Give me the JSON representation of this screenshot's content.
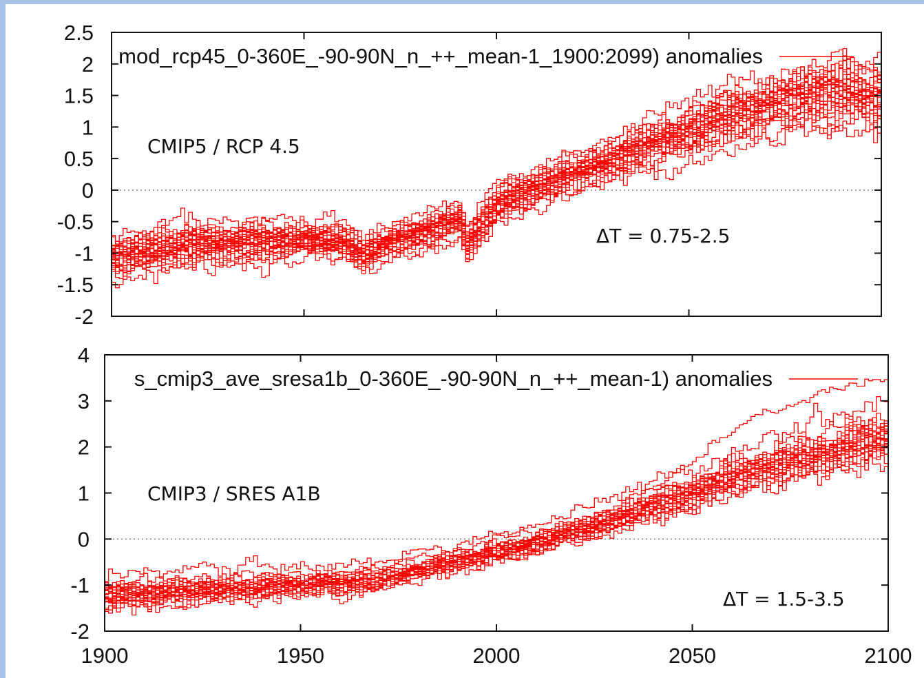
{
  "chart_data": [
    {
      "type": "line",
      "title": "",
      "legend_label": "mod_rcp45_0-360E_-90-90N_n_++_mean-1_1900:2099) anomalies",
      "legend_position": "top-right",
      "annotation_scenario": "CMIP5 / RCP 4.5",
      "annotation_range": "ΔT = 0.75-2.5",
      "xlim": [
        1900,
        2100
      ],
      "ylim": [
        -2,
        2.5
      ],
      "yticks": [
        "2.5",
        "2",
        "1.5",
        "1",
        "0.5",
        "0",
        "-0.5",
        "-1",
        "-1.5",
        "-2"
      ],
      "xticks": [
        "1900",
        "1950",
        "2000",
        "2050",
        "2100"
      ],
      "show_xtick_labels": false,
      "zero_line": true,
      "series_color": "#ff0000",
      "series_count": 30,
      "ensemble_envelope": {
        "x": [
          1900,
          1920,
          1940,
          1960,
          1965,
          1970,
          1980,
          1990,
          1992,
          2000,
          2010,
          2020,
          2030,
          2040,
          2050,
          2060,
          2070,
          2080,
          2090,
          2100
        ],
        "mean": [
          -1.05,
          -0.85,
          -0.8,
          -0.8,
          -1.05,
          -0.85,
          -0.65,
          -0.45,
          -0.85,
          -0.2,
          0.05,
          0.3,
          0.5,
          0.75,
          0.95,
          1.15,
          1.35,
          1.5,
          1.55,
          1.5
        ],
        "spread": [
          0.3,
          0.28,
          0.25,
          0.22,
          0.25,
          0.22,
          0.22,
          0.22,
          0.25,
          0.25,
          0.25,
          0.25,
          0.27,
          0.3,
          0.33,
          0.36,
          0.38,
          0.42,
          0.45,
          0.47
        ]
      }
    },
    {
      "type": "line",
      "title": "",
      "legend_label": "s_cmip3_ave_sresa1b_0-360E_-90-90N_n_++_mean-1) anomalies",
      "legend_position": "top-right",
      "annotation_scenario": "CMIP3 / SRES A1B",
      "annotation_range": "ΔT = 1.5-3.5",
      "xlim": [
        1900,
        2100
      ],
      "ylim": [
        -2,
        4
      ],
      "yticks": [
        "4",
        "3",
        "2",
        "1",
        "0",
        "-1",
        "-2"
      ],
      "xticks": [
        "1900",
        "1950",
        "2000",
        "2050",
        "2100"
      ],
      "show_xtick_labels": true,
      "zero_line": true,
      "series_color": "#ff0000",
      "series_count": 24,
      "ensemble_envelope": {
        "x": [
          1900,
          1920,
          1940,
          1960,
          1970,
          1980,
          1990,
          2000,
          2010,
          2020,
          2030,
          2040,
          2050,
          2060,
          2070,
          2080,
          2090,
          2100
        ],
        "mean": [
          -1.2,
          -1.1,
          -1.0,
          -0.95,
          -0.85,
          -0.65,
          -0.45,
          -0.25,
          -0.05,
          0.2,
          0.45,
          0.75,
          1.05,
          1.35,
          1.6,
          1.85,
          2.05,
          2.25
        ],
        "spread": [
          0.35,
          0.35,
          0.3,
          0.3,
          0.28,
          0.28,
          0.28,
          0.28,
          0.28,
          0.3,
          0.32,
          0.35,
          0.4,
          0.45,
          0.5,
          0.55,
          0.58,
          0.6
        ]
      },
      "outlier_series": {
        "x": [
          2000,
          2020,
          2040,
          2050,
          2060,
          2070,
          2080,
          2090,
          2100
        ],
        "values": [
          -0.2,
          0.3,
          1.1,
          1.7,
          2.3,
          2.8,
          3.1,
          3.35,
          3.4
        ]
      }
    }
  ]
}
